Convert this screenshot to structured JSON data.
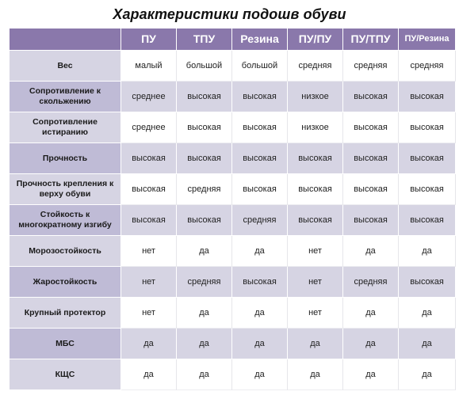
{
  "title": "Характеристики подошв обуви",
  "table": {
    "columns": [
      "ПУ",
      "ТПУ",
      "Резина",
      "ПУ/ПУ",
      "ПУ/ТПУ",
      "ПУ/Резина"
    ],
    "rows": [
      {
        "label": "Вес",
        "values": [
          "малый",
          "большой",
          "большой",
          "средняя",
          "средняя",
          "средняя"
        ]
      },
      {
        "label": "Сопротивление к скольжению",
        "values": [
          "среднее",
          "высокая",
          "высокая",
          "низкое",
          "высокая",
          "высокая"
        ]
      },
      {
        "label": "Сопротивление истиранию",
        "values": [
          "среднее",
          "высокая",
          "высокая",
          "низкое",
          "высокая",
          "высокая"
        ]
      },
      {
        "label": "Прочность",
        "values": [
          "высокая",
          "высокая",
          "высокая",
          "высокая",
          "высокая",
          "высокая"
        ]
      },
      {
        "label": "Прочность крепления к верху обуви",
        "values": [
          "высокая",
          "средняя",
          "высокая",
          "высокая",
          "высокая",
          "высокая"
        ]
      },
      {
        "label": "Стойкость к многократному изгибу",
        "values": [
          "высокая",
          "высокая",
          "средняя",
          "высокая",
          "высокая",
          "высокая"
        ]
      },
      {
        "label": "Морозостойкость",
        "values": [
          "нет",
          "да",
          "да",
          "нет",
          "да",
          "да"
        ]
      },
      {
        "label": "Жаростойкость",
        "values": [
          "нет",
          "средняя",
          "высокая",
          "нет",
          "средняя",
          "высокая"
        ]
      },
      {
        "label": "Крупный протектор",
        "values": [
          "нет",
          "да",
          "да",
          "нет",
          "да",
          "да"
        ]
      },
      {
        "label": "МБС",
        "values": [
          "да",
          "да",
          "да",
          "да",
          "да",
          "да"
        ]
      },
      {
        "label": "КЩС",
        "values": [
          "да",
          "да",
          "да",
          "да",
          "да",
          "да"
        ]
      }
    ]
  },
  "colors": {
    "header_bg": "#8a78ab",
    "row_dark": "#d6d4e3",
    "label_dark": "#bfbbd6"
  }
}
